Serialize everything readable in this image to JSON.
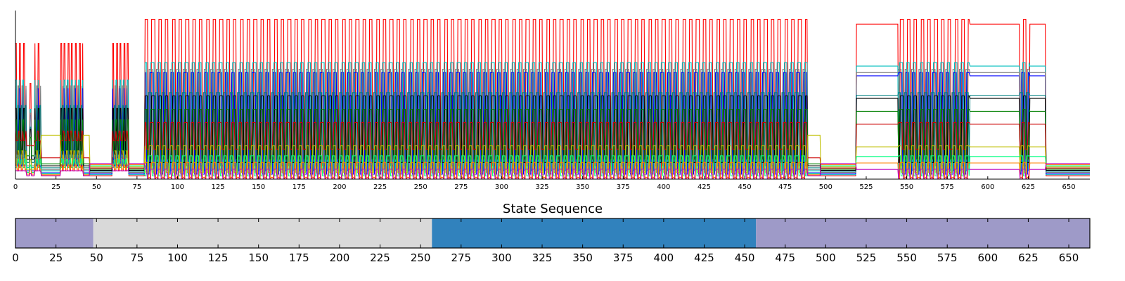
{
  "chart_data": [
    {
      "type": "line",
      "title": "",
      "xlabel": "",
      "ylabel": "",
      "xlim": [
        0,
        663
      ],
      "ylim": [
        0,
        1
      ],
      "grid": false,
      "x_ticks": [
        0,
        25,
        50,
        75,
        100,
        125,
        150,
        175,
        200,
        225,
        250,
        275,
        300,
        325,
        350,
        375,
        400,
        425,
        450,
        475,
        500,
        525,
        550,
        575,
        600,
        625,
        650
      ],
      "segments": [
        {
          "start": 0,
          "end": 7,
          "kind": "dense"
        },
        {
          "start": 7,
          "end": 12,
          "kind": "sparse"
        },
        {
          "start": 12,
          "end": 16,
          "kind": "dense"
        },
        {
          "start": 16,
          "end": 28,
          "kind": "low"
        },
        {
          "start": 28,
          "end": 42,
          "kind": "dense"
        },
        {
          "start": 42,
          "end": 46,
          "kind": "low"
        },
        {
          "start": 46,
          "end": 60,
          "kind": "flat"
        },
        {
          "start": 60,
          "end": 70,
          "kind": "dense"
        },
        {
          "start": 70,
          "end": 80,
          "kind": "flat"
        },
        {
          "start": 80,
          "end": 489,
          "kind": "oscillating"
        },
        {
          "start": 489,
          "end": 497,
          "kind": "low"
        },
        {
          "start": 497,
          "end": 519,
          "kind": "flat"
        },
        {
          "start": 519,
          "end": 545,
          "kind": "plateau"
        },
        {
          "start": 545,
          "end": 589,
          "kind": "oscillating"
        },
        {
          "start": 589,
          "end": 620,
          "kind": "plateau"
        },
        {
          "start": 620,
          "end": 626,
          "kind": "oscillating"
        },
        {
          "start": 626,
          "end": 636,
          "kind": "plateau"
        },
        {
          "start": 636,
          "end": 663,
          "kind": "flat"
        }
      ],
      "series": [
        {
          "color": "#ff0000",
          "peak": 0.96,
          "base": 0.0
        },
        {
          "color": "#00bfbf",
          "peak": 0.7,
          "base": 0.05
        },
        {
          "color": "#0000ff",
          "peak": 0.64,
          "base": 0.03
        },
        {
          "color": "#808080",
          "peak": 0.66,
          "base": 0.06
        },
        {
          "color": "#008080",
          "peak": 0.52,
          "base": 0.08
        },
        {
          "color": "#000000",
          "peak": 0.5,
          "base": 0.1
        },
        {
          "color": "#008000",
          "peak": 0.42,
          "base": 0.12
        },
        {
          "color": "#cc0000",
          "peak": 0.34,
          "base": 0.18
        },
        {
          "color": "#bfbf00",
          "peak": 0.2,
          "base": 0.04
        },
        {
          "color": "#00ff80",
          "peak": 0.14,
          "base": 0.02
        },
        {
          "color": "#ff8000",
          "peak": 0.1,
          "base": 0.01
        },
        {
          "color": "#bf00bf",
          "peak": 0.06,
          "base": 0.0
        }
      ]
    },
    {
      "type": "bar",
      "title": "State Sequence",
      "xlabel": "",
      "ylabel": "",
      "xlim": [
        0,
        663
      ],
      "x_ticks": [
        0,
        25,
        50,
        75,
        100,
        125,
        150,
        175,
        200,
        225,
        250,
        275,
        300,
        325,
        350,
        375,
        400,
        425,
        450,
        475,
        500,
        525,
        550,
        575,
        600,
        625,
        650
      ],
      "states": [
        {
          "start": 0,
          "end": 48,
          "color": "#9e9ac8"
        },
        {
          "start": 48,
          "end": 257,
          "color": "#d9d9d9"
        },
        {
          "start": 257,
          "end": 457,
          "color": "#3182bd"
        },
        {
          "start": 457,
          "end": 663,
          "color": "#9e9ac8"
        }
      ]
    }
  ]
}
